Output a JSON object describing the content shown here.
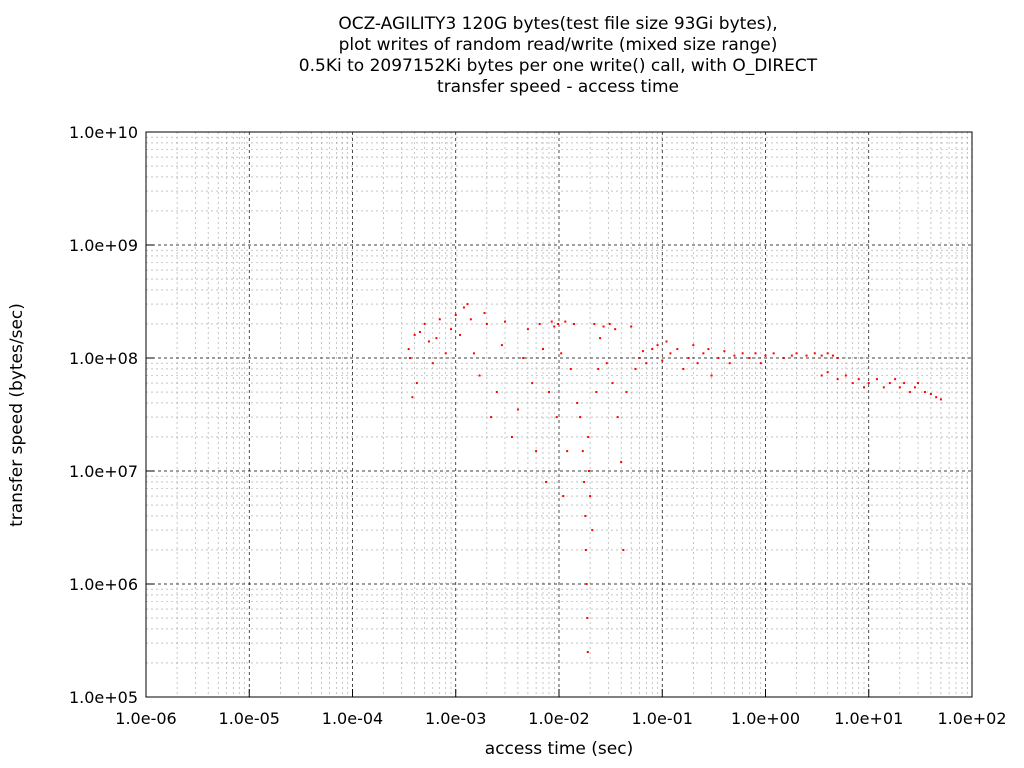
{
  "chart_data": {
    "type": "scatter",
    "title_lines": [
      "OCZ-AGILITY3 120G bytes(test file size 93Gi bytes),",
      "plot writes of random read/write (mixed size range)",
      "0.5Ki to 2097152Ki bytes per one write() call, with O_DIRECT",
      "transfer speed - access time"
    ],
    "xlabel": "access time (sec)",
    "ylabel": "transfer speed (bytes/sec)",
    "x_scale": "log",
    "y_scale": "log",
    "xlim": [
      1e-06,
      100
    ],
    "ylim": [
      100000,
      10000000000
    ],
    "x_ticks": [
      "1.0e-06",
      "1.0e-05",
      "1.0e-04",
      "1.0e-03",
      "1.0e-02",
      "1.0e-01",
      "1.0e+00",
      "1.0e+01",
      "1.0e+02"
    ],
    "y_ticks": [
      "1.0e+05",
      "1.0e+06",
      "1.0e+07",
      "1.0e+08",
      "1.0e+09",
      "1.0e+10"
    ],
    "grid": true,
    "marker_color": "#ff0000",
    "series": [
      {
        "points": [
          [
            0.00035,
            120000000.0
          ],
          [
            0.00036,
            100000000.0
          ],
          [
            0.00038,
            45000000.0
          ],
          [
            0.0004,
            160000000.0
          ],
          [
            0.00042,
            60000000.0
          ],
          [
            0.00045,
            170000000.0
          ],
          [
            0.0005,
            200000000.0
          ],
          [
            0.00055,
            140000000.0
          ],
          [
            0.0006,
            90000000.0
          ],
          [
            0.00065,
            150000000.0
          ],
          [
            0.0007,
            220000000.0
          ],
          [
            0.0008,
            110000000.0
          ],
          [
            0.0009,
            180000000.0
          ],
          [
            0.001,
            240000000.0
          ],
          [
            0.0011,
            160000000.0
          ],
          [
            0.0012,
            280000000.0
          ],
          [
            0.0013,
            300000000.0
          ],
          [
            0.0014,
            220000000.0
          ],
          [
            0.0015,
            110000000.0
          ],
          [
            0.0017,
            70000000.0
          ],
          [
            0.0019,
            250000000.0
          ],
          [
            0.002,
            200000000.0
          ],
          [
            0.0022,
            30000000.0
          ],
          [
            0.0025,
            50000000.0
          ],
          [
            0.0028,
            130000000.0
          ],
          [
            0.003,
            210000000.0
          ],
          [
            0.0035,
            20000000.0
          ],
          [
            0.004,
            35000000.0
          ],
          [
            0.0045,
            100000000.0
          ],
          [
            0.005,
            180000000.0
          ],
          [
            0.0055,
            60000000.0
          ],
          [
            0.006,
            15000000.0
          ],
          [
            0.0065,
            200000000.0
          ],
          [
            0.007,
            120000000.0
          ],
          [
            0.0075,
            8000000.0
          ],
          [
            0.008,
            50000000.0
          ],
          [
            0.0085,
            210000000.0
          ],
          [
            0.009,
            190000000.0
          ],
          [
            0.0095,
            30000000.0
          ],
          [
            0.0098,
            200000000.0
          ],
          [
            0.0105,
            110000000.0
          ],
          [
            0.011,
            6000000.0
          ],
          [
            0.0115,
            210000000.0
          ],
          [
            0.012,
            15000000.0
          ],
          [
            0.013,
            80000000.0
          ],
          [
            0.014,
            200000000.0
          ],
          [
            0.015,
            40000000.0
          ],
          [
            0.016,
            30000000.0
          ],
          [
            0.017,
            15000000.0
          ],
          [
            0.0175,
            8000000.0
          ],
          [
            0.018,
            4000000.0
          ],
          [
            0.0182,
            2000000.0
          ],
          [
            0.0185,
            1000000.0
          ],
          [
            0.0188,
            500000.0
          ],
          [
            0.019,
            250000.0
          ],
          [
            0.0192,
            20000000.0
          ],
          [
            0.0195,
            10000000.0
          ],
          [
            0.02,
            6000000.0
          ],
          [
            0.021,
            3000000.0
          ],
          [
            0.022,
            200000000.0
          ],
          [
            0.023,
            50000000.0
          ],
          [
            0.024,
            80000000.0
          ],
          [
            0.025,
            150000000.0
          ],
          [
            0.027,
            190000000.0
          ],
          [
            0.029,
            90000000.0
          ],
          [
            0.031,
            200000000.0
          ],
          [
            0.033,
            60000000.0
          ],
          [
            0.035,
            180000000.0
          ],
          [
            0.037,
            30000000.0
          ],
          [
            0.04,
            12000000.0
          ],
          [
            0.042,
            2000000.0
          ],
          [
            0.045,
            50000000.0
          ],
          [
            0.05,
            190000000.0
          ],
          [
            0.055,
            80000000.0
          ],
          [
            0.06,
            100000000.0
          ],
          [
            0.065,
            115000000.0
          ],
          [
            0.07,
            90000000.0
          ],
          [
            0.08,
            120000000.0
          ],
          [
            0.09,
            130000000.0
          ],
          [
            0.1,
            95000000.0
          ],
          [
            0.11,
            140000000.0
          ],
          [
            0.12,
            110000000.0
          ],
          [
            0.14,
            120000000.0
          ],
          [
            0.16,
            80000000.0
          ],
          [
            0.18,
            100000000.0
          ],
          [
            0.2,
            130000000.0
          ],
          [
            0.22,
            90000000.0
          ],
          [
            0.25,
            110000000.0
          ],
          [
            0.28,
            120000000.0
          ],
          [
            0.3,
            70000000.0
          ],
          [
            0.35,
            100000000.0
          ],
          [
            0.4,
            115000000.0
          ],
          [
            0.45,
            90000000.0
          ],
          [
            0.5,
            105000000.0
          ],
          [
            0.6,
            110000000.0
          ],
          [
            0.7,
            100000000.0
          ],
          [
            0.8,
            110000000.0
          ],
          [
            0.9,
            90000000.0
          ],
          [
            1.0,
            105000000.0
          ],
          [
            1.2,
            110000000.0
          ],
          [
            1.5,
            100000000.0
          ],
          [
            1.8,
            105000000.0
          ],
          [
            2.0,
            110000000.0
          ],
          [
            2.5,
            105000000.0
          ],
          [
            3.0,
            110000000.0
          ],
          [
            3.5,
            105000000.0
          ],
          [
            4.0,
            110000000.0
          ],
          [
            4.5,
            105000000.0
          ],
          [
            5.0,
            100000000.0
          ],
          [
            3.5,
            70000000.0
          ],
          [
            4.0,
            75000000.0
          ],
          [
            5.0,
            65000000.0
          ],
          [
            6.0,
            70000000.0
          ],
          [
            7.0,
            60000000.0
          ],
          [
            8.0,
            65000000.0
          ],
          [
            9.0,
            55000000.0
          ],
          [
            10.0,
            60000000.0
          ],
          [
            12.0,
            65000000.0
          ],
          [
            14.0,
            55000000.0
          ],
          [
            16.0,
            60000000.0
          ],
          [
            18.0,
            65000000.0
          ],
          [
            20.0,
            55000000.0
          ],
          [
            22.0,
            60000000.0
          ],
          [
            25.0,
            50000000.0
          ],
          [
            28.0,
            55000000.0
          ],
          [
            30.0,
            60000000.0
          ],
          [
            35.0,
            50000000.0
          ],
          [
            40.0,
            48000000.0
          ],
          [
            45.0,
            45000000.0
          ],
          [
            50.0,
            43000000.0
          ]
        ]
      }
    ]
  }
}
